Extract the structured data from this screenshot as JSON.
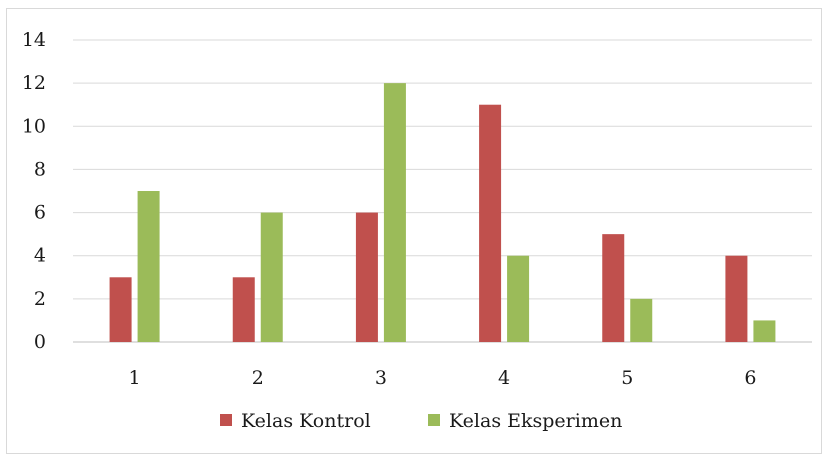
{
  "chart_data": {
    "type": "bar",
    "title": "",
    "xlabel": "",
    "ylabel": "",
    "categories": [
      "1",
      "2",
      "3",
      "4",
      "5",
      "6"
    ],
    "series": [
      {
        "name": "Kelas Kontrol",
        "color": "#c0504d",
        "values": [
          3,
          3,
          6,
          11,
          5,
          4
        ]
      },
      {
        "name": "Kelas Eksperimen",
        "color": "#9bbb59",
        "values": [
          7,
          6,
          12,
          4,
          2,
          1
        ]
      }
    ],
    "ylim": [
      0,
      14
    ],
    "yticks": [
      "0",
      "2",
      "4",
      "6",
      "8",
      "10",
      "12",
      "14"
    ],
    "grid": true,
    "legend": "bottom"
  }
}
